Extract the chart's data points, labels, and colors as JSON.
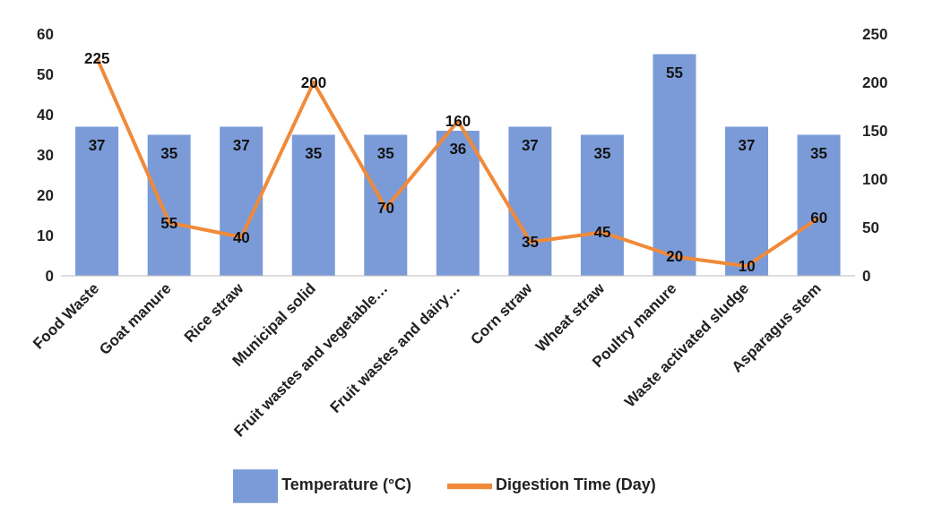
{
  "chart_data": {
    "type": "bar",
    "categories": [
      "Food Waste",
      "Goat manure",
      "Rice straw",
      "Municipal solid",
      "Fruit wastes and vegetable…",
      "Fruit wastes and dairy…",
      "Corn straw",
      "Wheat straw",
      "Poultry manure",
      "Waste activated sludge",
      "Asparagus stem"
    ],
    "series": [
      {
        "name": "Temperature (°C)",
        "color": "#7b9bd8",
        "values": [
          37,
          35,
          37,
          35,
          35,
          36,
          37,
          35,
          55,
          37,
          35
        ]
      },
      {
        "name": "Digestion Time (Day)",
        "type": "line",
        "axis": "y2",
        "color": "#f08a3a",
        "values": [
          225,
          55,
          40,
          200,
          70,
          160,
          35,
          45,
          20,
          10,
          60
        ]
      }
    ],
    "ylim": [
      0,
      60
    ],
    "yticks": [
      0,
      10,
      20,
      30,
      40,
      50,
      60
    ],
    "y2lim": [
      0,
      250
    ],
    "y2ticks": [
      0,
      50,
      100,
      150,
      200,
      250
    ],
    "data_labels": true,
    "legend": "bottom"
  }
}
